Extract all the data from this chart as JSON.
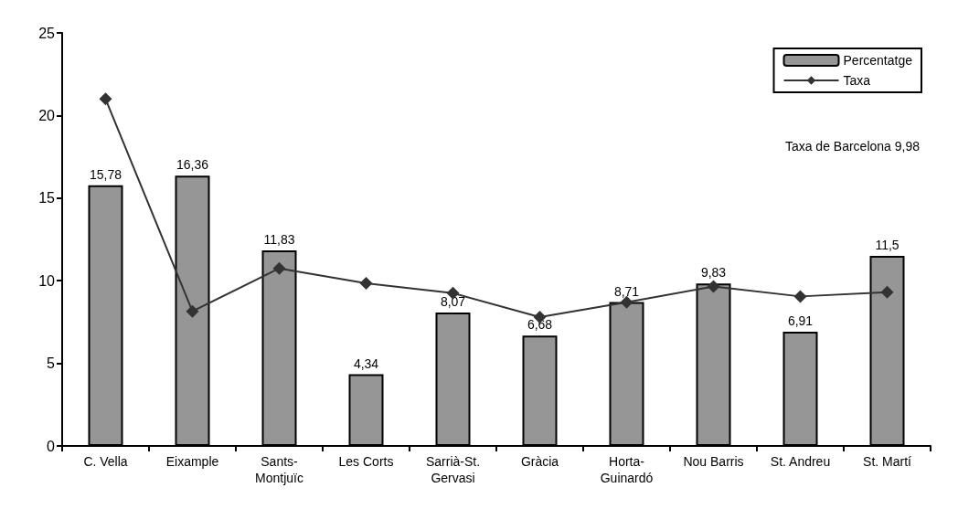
{
  "chart_data": {
    "type": "bar",
    "categories": [
      "C. Vella",
      "Eixample",
      "Sants-Montjuïc",
      "Les Corts",
      "Sarrià-St. Gervasi",
      "Gràcia",
      "Horta-Guinardó",
      "Nou Barris",
      "St. Andreu",
      "St. Martí"
    ],
    "series": [
      {
        "name": "Percentatge",
        "color": "#969696",
        "values": [
          15.78,
          16.36,
          11.83,
          4.34,
          8.07,
          6.68,
          8.71,
          9.83,
          6.91,
          11.5
        ],
        "value_labels": [
          "15,78",
          "16,36",
          "11,83",
          "4,34",
          "8,07",
          "6,68",
          "8,71",
          "9,83",
          "6,91",
          "11,5"
        ]
      },
      {
        "name": "Taxa",
        "type": "line",
        "color": "#333333",
        "marker": "diamond",
        "values": [
          21.0,
          8.15,
          10.75,
          9.85,
          9.25,
          7.8,
          8.7,
          9.65,
          9.05,
          9.3
        ]
      }
    ],
    "ylim": [
      0,
      25
    ],
    "yticks": [
      0,
      5,
      10,
      15,
      20,
      25
    ],
    "grid": false,
    "legend": "top right",
    "annotations": [
      "Taxa de Barcelona 9,98"
    ]
  }
}
